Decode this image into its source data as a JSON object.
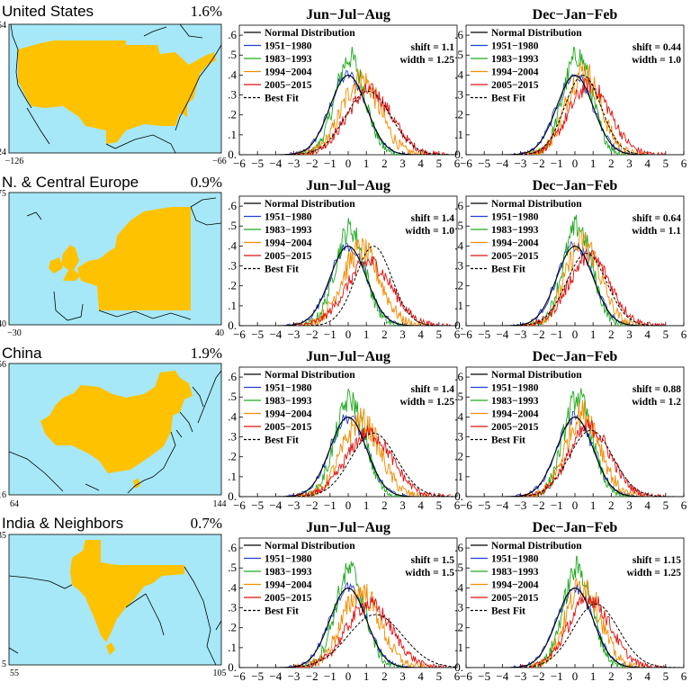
{
  "chart_data": {
    "type": "line",
    "x_ticks": [
      -6,
      -5,
      -4,
      -3,
      -2,
      -1,
      0,
      1,
      2,
      3,
      4,
      5,
      6
    ],
    "y_ticks": [
      0,
      0.1,
      0.2,
      0.3,
      0.4,
      0.5,
      0.6
    ],
    "y_tick_labels": [
      "0.",
      ".1",
      ".2",
      ".3",
      ".4",
      ".5",
      ".6"
    ],
    "xlim": [
      -6,
      6
    ],
    "ylim": [
      0,
      0.65
    ],
    "legend": [
      {
        "name": "Normal Distribution",
        "color": "#000000",
        "style": "solid"
      },
      {
        "name": "1951−1980",
        "color": "#1f3fd6",
        "style": "solid"
      },
      {
        "name": "1983−1993",
        "color": "#1faa1f",
        "style": "solid"
      },
      {
        "name": "1994−2004",
        "color": "#f28c00",
        "style": "solid"
      },
      {
        "name": "2005−2015",
        "color": "#e01010",
        "style": "solid"
      },
      {
        "name": "Best Fit",
        "color": "#000000",
        "style": "dashed"
      }
    ],
    "series_params": {
      "jja": {
        "1951-1980": [
          0,
          1
        ],
        "1983-1993": [
          0.1,
          0.82
        ],
        "1994-2004": [
          0.7,
          1.05
        ],
        "2005-2015": [
          1.15,
          1.25
        ]
      },
      "djf": {
        "1951-1980": [
          0,
          1
        ],
        "1983-1993": [
          0.15,
          0.8
        ],
        "1994-2004": [
          0.45,
          0.95
        ],
        "2005-2015": [
          0.8,
          1.15
        ]
      }
    },
    "regions": [
      {
        "name": "United States",
        "percent": "1.6%",
        "lat": [
          "54",
          "24"
        ],
        "lon": [
          "−126",
          "−66"
        ],
        "panels": [
          {
            "season": "Jun−Jul−Aug",
            "shift": "1.1",
            "width": "1.25",
            "fit": [
              1.1,
              1.25
            ]
          },
          {
            "season": "Dec−Jan−Feb",
            "shift": "0.44",
            "width": "1.0",
            "fit": [
              0.44,
              1.0
            ]
          }
        ]
      },
      {
        "name": "N. & Central Europe",
        "percent": "0.9%",
        "lat": [
          "75",
          "40"
        ],
        "lon": [
          "−30",
          "40"
        ],
        "panels": [
          {
            "season": "Jun−Jul−Aug",
            "shift": "1.4",
            "width": "1.0",
            "fit": [
              1.4,
              1.0
            ]
          },
          {
            "season": "Dec−Jan−Feb",
            "shift": "0.64",
            "width": "1.1",
            "fit": [
              0.64,
              1.1
            ]
          }
        ]
      },
      {
        "name": "China",
        "percent": "1.9%",
        "lat": [
          "56",
          "16"
        ],
        "lon": [
          "64",
          "144"
        ],
        "panels": [
          {
            "season": "Jun−Jul−Aug",
            "shift": "1.4",
            "width": "1.25",
            "fit": [
              1.4,
              1.25
            ]
          },
          {
            "season": "Dec−Jan−Feb",
            "shift": "0.88",
            "width": "1.2",
            "fit": [
              0.88,
              1.2
            ]
          }
        ]
      },
      {
        "name": "India & Neighbors",
        "percent": "0.7%",
        "lat": [
          "35",
          "5"
        ],
        "lon": [
          "55",
          "105"
        ],
        "panels": [
          {
            "season": "Jun−Jul−Aug",
            "shift": "1.5",
            "width": "1.5",
            "fit": [
              1.5,
              1.5
            ]
          },
          {
            "season": "Dec−Jan−Feb",
            "shift": "1.15",
            "width": "1.25",
            "fit": [
              1.15,
              1.25
            ]
          }
        ]
      }
    ]
  },
  "colors": {
    "ocean": "#a6e8f8",
    "land_region": "#ffc200",
    "normal": "#000000",
    "p1951": "#1f3fd6",
    "p1983": "#1faa1f",
    "p1994": "#f28c00",
    "p2005": "#e01010"
  }
}
